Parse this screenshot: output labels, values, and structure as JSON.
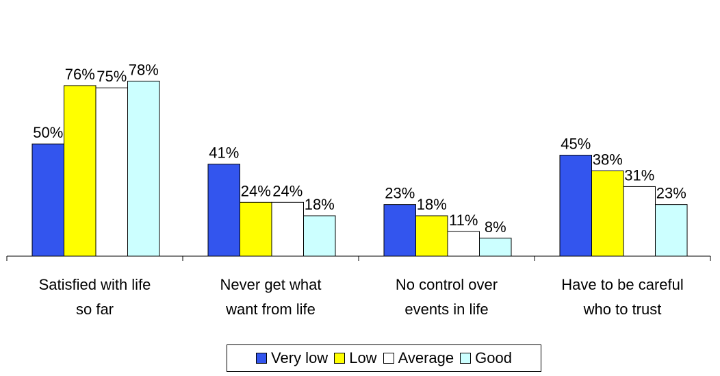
{
  "chart_data": {
    "type": "bar",
    "categories": [
      "Satisfied with life so far",
      "Never get what want from life",
      "No control over events in life",
      "Have to be careful who to trust"
    ],
    "category_lines": [
      [
        "Satisfied with life",
        "so far"
      ],
      [
        "Never get what",
        "want from life"
      ],
      [
        "No control over",
        "events in life"
      ],
      [
        "Have to be careful",
        "who to trust"
      ]
    ],
    "series": [
      {
        "name": "Very low",
        "color": "#3355ee",
        "values": [
          50,
          41,
          23,
          45
        ],
        "labels": [
          "50%",
          "41%",
          "23%",
          "45%"
        ]
      },
      {
        "name": "Low",
        "color": "#ffff00",
        "values": [
          76,
          24,
          18,
          38
        ],
        "labels": [
          "76%",
          "24%",
          "18%",
          "38%"
        ]
      },
      {
        "name": "Average",
        "color": "#ffffff",
        "values": [
          75,
          24,
          11,
          31
        ],
        "labels": [
          "75%",
          "24%",
          "11%",
          "31%"
        ]
      },
      {
        "name": "Good",
        "color": "#ccffff",
        "values": [
          78,
          18,
          8,
          23
        ],
        "labels": [
          "78%",
          "18%",
          "8%",
          "23%"
        ]
      }
    ],
    "ylim": [
      0,
      100
    ],
    "title": "",
    "xlabel": "",
    "ylabel": "",
    "legend_position": "bottom",
    "grid": false
  }
}
